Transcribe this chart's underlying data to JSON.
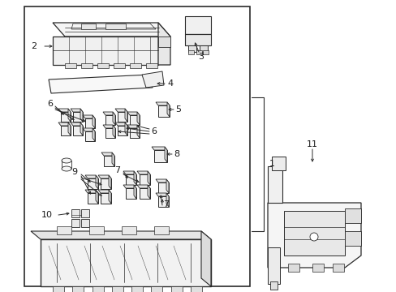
{
  "bg": "#ffffff",
  "lc": "#2a2a2a",
  "tc": "#1a1a1a",
  "fig_w": 4.89,
  "fig_h": 3.6,
  "dpi": 100
}
